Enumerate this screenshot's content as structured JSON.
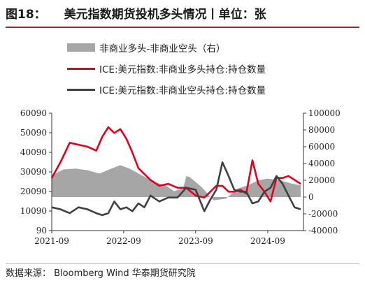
{
  "figure": {
    "number": "图18：",
    "title": "美元指数期货投机多头情况丨单位：张",
    "source": "数据来源：  Bloomberg Wind 华泰期货研究院"
  },
  "colors": {
    "net_area": "#a6a6a6",
    "long_line": "#e3001b",
    "short_line": "#404040",
    "title_rule": "#9e2a2a"
  },
  "chart_data": {
    "type": "line",
    "x_tick_labels": [
      "2021-09",
      "2022-09",
      "2023-09",
      "2024-09"
    ],
    "left_axis": {
      "ylim": [
        90,
        60090
      ],
      "ticks": [
        "60090",
        "50090",
        "40090",
        "30090",
        "20090",
        "10090",
        "90"
      ]
    },
    "right_axis": {
      "ylim": [
        -40000,
        100000
      ],
      "ticks": [
        "100000",
        "80000",
        "60000",
        "40000",
        "20000",
        "0",
        "-20000",
        "-40000"
      ]
    },
    "series": [
      {
        "name": "非商业多头-非商业空头（右）",
        "kind": "area",
        "axis": "right",
        "x": [
          "2021-09-01",
          "2021-11-01",
          "2022-01-01",
          "2022-03-01",
          "2022-05-01",
          "2022-07-01",
          "2022-08-15",
          "2022-10-01",
          "2022-12-01",
          "2023-02-01",
          "2023-04-01",
          "2023-05-15",
          "2023-07-01",
          "2023-07-15",
          "2023-08-01",
          "2023-10-01",
          "2023-12-01",
          "2024-02-01",
          "2024-04-01",
          "2024-06-01",
          "2024-07-15",
          "2024-09-01",
          "2024-11-01",
          "2025-01-01",
          "2025-02-15"
        ],
        "values": [
          26000,
          33000,
          34000,
          32000,
          28000,
          34000,
          38000,
          34000,
          26000,
          18000,
          14000,
          7000,
          11000,
          25000,
          24000,
          12000,
          -4000,
          -2000,
          10000,
          15000,
          20000,
          22000,
          20000,
          16000,
          14000
        ]
      },
      {
        "name": "ICE:美元指数:非商业多头持仓:持仓数量",
        "kind": "line",
        "axis": "left",
        "x": [
          "2021-09-01",
          "2021-10-15",
          "2021-12-01",
          "2022-01-15",
          "2022-03-01",
          "2022-04-15",
          "2022-05-15",
          "2022-06-15",
          "2022-07-15",
          "2022-08-15",
          "2022-09-15",
          "2022-10-15",
          "2022-11-15",
          "2022-12-15",
          "2023-01-15",
          "2023-03-01",
          "2023-04-15",
          "2023-06-01",
          "2023-07-15",
          "2023-09-01",
          "2023-10-15",
          "2023-11-15",
          "2023-12-15",
          "2024-01-15",
          "2024-02-15",
          "2024-03-15",
          "2024-04-15",
          "2024-05-15",
          "2024-06-15",
          "2024-07-15",
          "2024-08-15",
          "2024-09-15",
          "2024-10-15",
          "2024-11-15",
          "2024-12-15",
          "2025-01-15",
          "2025-02-15"
        ],
        "values": [
          27000,
          35000,
          45000,
          44000,
          43000,
          41000,
          48000,
          53000,
          50000,
          52000,
          47000,
          40000,
          32000,
          29000,
          26000,
          23000,
          24000,
          22000,
          22000,
          18000,
          17000,
          20000,
          23000,
          23000,
          20000,
          20000,
          21000,
          19000,
          36000,
          24000,
          20000,
          15000,
          27000,
          27000,
          28000,
          26000,
          24000
        ]
      },
      {
        "name": "ICE:美元指数:非商业空头持仓:持仓数量",
        "kind": "line",
        "axis": "left",
        "x": [
          "2021-09-01",
          "2021-10-15",
          "2021-12-01",
          "2022-01-15",
          "2022-03-01",
          "2022-04-15",
          "2022-05-15",
          "2022-06-15",
          "2022-07-15",
          "2022-08-15",
          "2022-09-15",
          "2022-10-15",
          "2022-11-15",
          "2022-12-15",
          "2023-01-15",
          "2023-03-01",
          "2023-04-15",
          "2023-06-01",
          "2023-07-15",
          "2023-09-01",
          "2023-10-15",
          "2023-11-15",
          "2023-12-15",
          "2024-01-15",
          "2024-02-15",
          "2024-03-15",
          "2024-04-15",
          "2024-05-15",
          "2024-06-15",
          "2024-07-15",
          "2024-08-15",
          "2024-09-15",
          "2024-10-15",
          "2024-11-15",
          "2024-12-15",
          "2025-01-15",
          "2025-02-15"
        ],
        "values": [
          12000,
          11000,
          9000,
          12000,
          11000,
          9000,
          8000,
          9000,
          15000,
          11000,
          12000,
          10000,
          14000,
          12000,
          18000,
          15000,
          17000,
          17000,
          22000,
          21000,
          10000,
          16000,
          21000,
          35000,
          28000,
          21000,
          20000,
          20000,
          14000,
          15000,
          20000,
          22000,
          28000,
          24000,
          18000,
          12000,
          11000
        ]
      }
    ]
  }
}
